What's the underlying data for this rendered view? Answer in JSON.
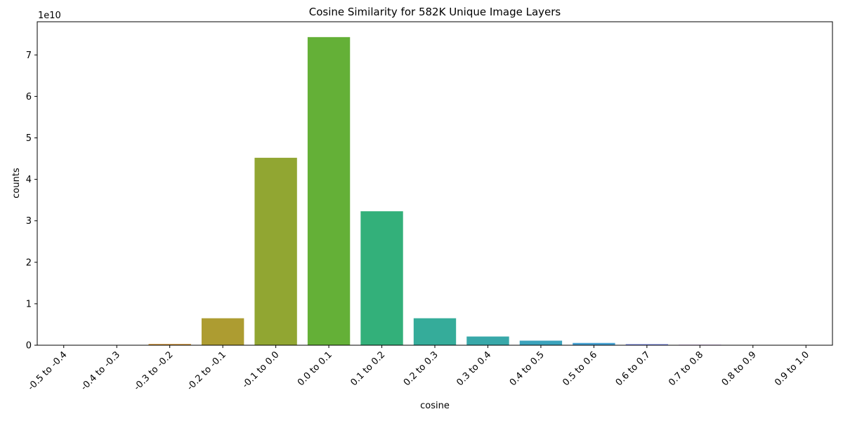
{
  "chart_data": {
    "type": "bar",
    "title": "Cosine Similarity for 582K Unique Image Layers",
    "xlabel": "cosine",
    "ylabel": "counts",
    "y_offset_label": "1e10",
    "y_scale": 10000000000,
    "ylim": [
      0,
      78000000000
    ],
    "y_ticks": [
      0,
      1,
      2,
      3,
      4,
      5,
      6,
      7
    ],
    "grid": false,
    "categories": [
      "-0.5 to -0.4",
      "-0.4 to -0.3",
      "-0.3 to -0.2",
      "-0.2 to -0.1",
      "-0.1 to 0.0",
      "0.0 to 0.1",
      "0.1 to 0.2",
      "0.2 to 0.3",
      "0.3 to 0.4",
      "0.4 to 0.5",
      "0.5 to 0.6",
      "0.6 to 0.7",
      "0.7 to 0.8",
      "0.8 to 0.9",
      "0.9 to 1.0"
    ],
    "values": [
      20000000,
      60000000,
      300000000,
      6500000000,
      45200000000,
      74300000000,
      32300000000,
      6500000000,
      2100000000,
      1100000000,
      550000000,
      280000000,
      120000000,
      80000000,
      70000000
    ],
    "colors": [
      "#f77189",
      "#e98432",
      "#cc8f32",
      "#ad9c31",
      "#91a632",
      "#64b037",
      "#33b07a",
      "#35ac9a",
      "#38a8a9",
      "#3ba3bc",
      "#44a0d2",
      "#8795e8",
      "#bf82f1",
      "#f563d4",
      "#f57ba7"
    ]
  }
}
